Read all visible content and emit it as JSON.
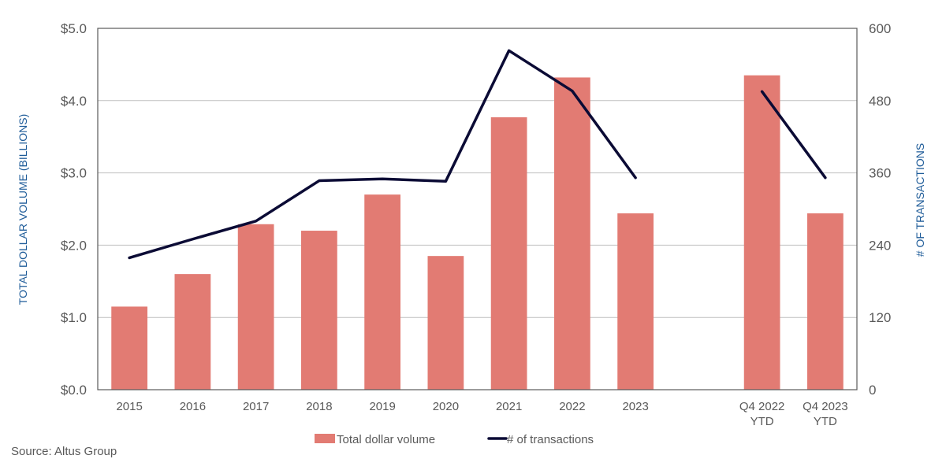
{
  "chart_data": {
    "type": "bar+line",
    "categories": [
      "2015",
      "2016",
      "2017",
      "2018",
      "2019",
      "2020",
      "2021",
      "2022",
      "2023",
      "",
      "Q4 2022\nYTD",
      "Q4 2023\nYTD"
    ],
    "series": [
      {
        "name": "Total dollar volume",
        "type": "bar",
        "axis": "left",
        "color": "#e27b73",
        "values": [
          1.15,
          1.6,
          2.29,
          2.2,
          2.7,
          1.85,
          3.77,
          4.32,
          2.44,
          null,
          4.35,
          2.44
        ]
      },
      {
        "name": "# of transactions",
        "type": "line",
        "axis": "right",
        "color": "#0b0b35",
        "values": [
          219,
          250,
          280,
          347,
          350,
          346,
          563,
          496,
          352,
          null,
          495,
          352
        ]
      }
    ],
    "left_axis": {
      "title": "TOTAL DOLLAR VOLUME (BILLIONS)",
      "ylim": [
        0,
        5
      ],
      "ticks": [
        0,
        1,
        2,
        3,
        4,
        5
      ],
      "tick_labels": [
        "$0.0",
        "$1.0",
        "$2.0",
        "$3.0",
        "$4.0",
        "$5.0"
      ]
    },
    "right_axis": {
      "title": "# OF TRANSACTIONS",
      "ylim": [
        0,
        600
      ],
      "ticks": [
        0,
        120,
        240,
        360,
        480,
        600
      ],
      "tick_labels": [
        "0",
        "120",
        "240",
        "360",
        "480",
        "600"
      ]
    },
    "grid": true,
    "legend": {
      "placement": "bottom-center",
      "entries": [
        "Total dollar volume",
        "# of transactions"
      ]
    },
    "source": "Source:  Altus Group",
    "colors": {
      "bar": "#e27b73",
      "line": "#0b0b35",
      "axis_title": "#1f5c99",
      "tick_text": "#595959",
      "grid": "#bfbfbf",
      "frame": "#595959"
    }
  }
}
